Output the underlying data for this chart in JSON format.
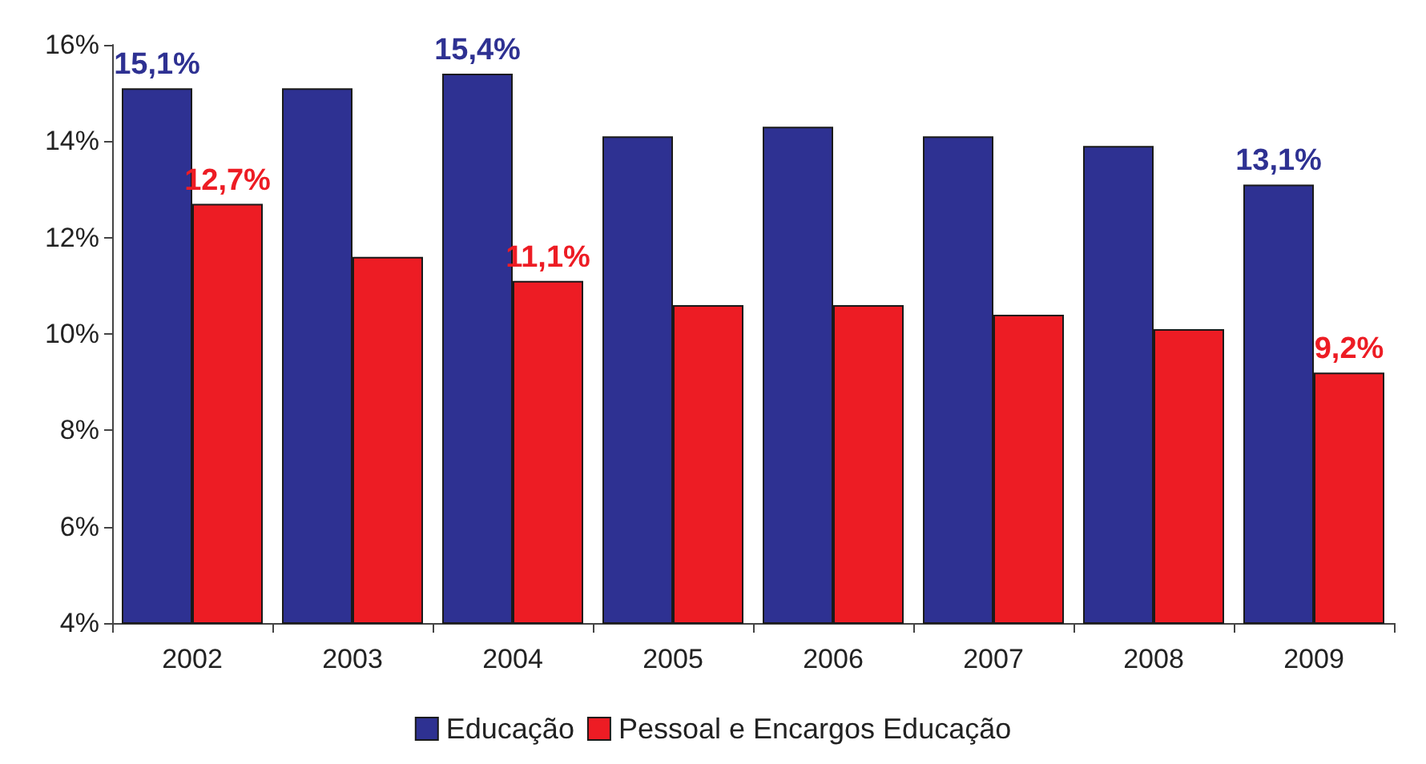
{
  "chart_data": {
    "type": "bar",
    "categories": [
      "2002",
      "2003",
      "2004",
      "2005",
      "2006",
      "2007",
      "2008",
      "2009"
    ],
    "series": [
      {
        "name": "Educação",
        "color": "#2e3192",
        "values": [
          15.1,
          15.1,
          15.4,
          14.1,
          14.3,
          14.1,
          13.9,
          13.1
        ],
        "value_labels": [
          "15,1%",
          null,
          "15,4%",
          null,
          null,
          null,
          null,
          "13,1%"
        ]
      },
      {
        "name": "Pessoal e Encargos Educação",
        "color": "#ed1c24",
        "values": [
          12.7,
          11.6,
          11.1,
          10.6,
          10.6,
          10.4,
          10.1,
          9.2
        ],
        "value_labels": [
          "12,7%",
          null,
          "11,1%",
          null,
          null,
          null,
          null,
          "9,2%"
        ]
      }
    ],
    "ylim": [
      4,
      16
    ],
    "yticks": [
      {
        "value": 4,
        "label": "4%"
      },
      {
        "value": 6,
        "label": "6%"
      },
      {
        "value": 8,
        "label": "8%"
      },
      {
        "value": 10,
        "label": "10%"
      },
      {
        "value": 12,
        "label": "12%"
      },
      {
        "value": 14,
        "label": "14%"
      },
      {
        "value": 16,
        "label": "16%"
      }
    ],
    "grid": false,
    "legend": "bottom"
  }
}
